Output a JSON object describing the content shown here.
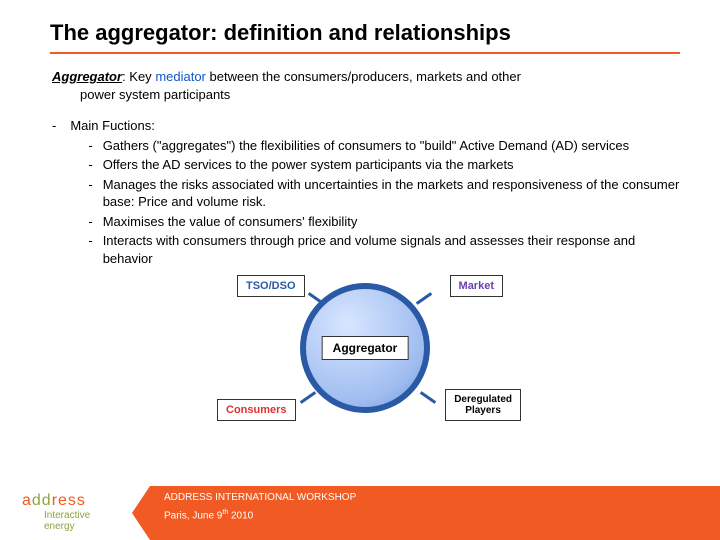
{
  "title": "The aggregator: definition and relationships",
  "definition": {
    "term": "Aggregator",
    "lead": ": Key ",
    "mediator": "mediator",
    "rest1": " between the consumers/producers, markets and other",
    "rest2": "power system participants"
  },
  "functions": {
    "heading": "Main Fuctions:",
    "items": [
      "Gathers (\"aggregates\") the flexibilities of consumers to \"build\" Active Demand (AD) services",
      "Offers the AD services to the power system participants via the markets",
      "Manages the risks associated with uncertainties in the markets and responsiveness of the consumer base: Price and volume risk.",
      "Maximises the value of consumers' flexibility",
      "Interacts with consumers through price and volume signals and assesses their response and behavior"
    ]
  },
  "diagram": {
    "center": "Aggregator",
    "nodes": {
      "tsodso": "TSO/DSO",
      "market": "Market",
      "consumers": "Consumers",
      "dereg_l1": "Deregulated",
      "dereg_l2": "Players"
    },
    "colors": {
      "ring": "#2a5aa6",
      "tsodso": "#2a5aa6",
      "market": "#6a3fb0",
      "consumers": "#e03030",
      "dereg": "#000000"
    }
  },
  "footer": {
    "brand_a": "a",
    "brand_dd": "dd",
    "brand_ress": "ress",
    "tag_l1": "Interactive",
    "tag_l2": "energy",
    "line1": "ADDRESS INTERNATIONAL WORKSHOP",
    "line2a": "Paris, June 9",
    "line2sup": "th",
    "line2b": " 2010",
    "accent": "#f15a22",
    "green": "#8aa63a"
  }
}
